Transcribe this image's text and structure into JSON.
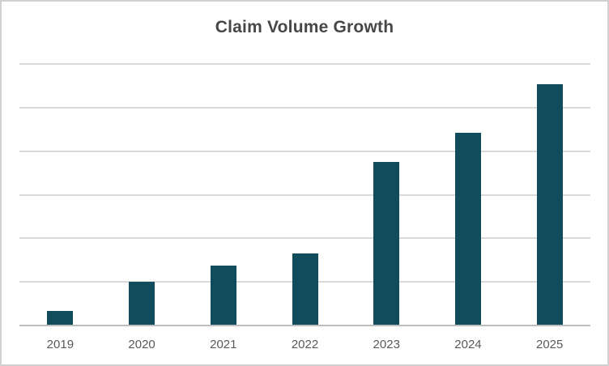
{
  "window": {
    "background_color": "#ffffff",
    "border_color": "#d1d1d1"
  },
  "chart_data": {
    "type": "bar",
    "title": "Claim Volume Growth",
    "categories": [
      "2019",
      "2020",
      "2021",
      "2022",
      "2023",
      "2024",
      "2025"
    ],
    "values": [
      340,
      1000,
      1380,
      1650,
      3750,
      4430,
      5540
    ],
    "xlabel": "",
    "ylabel": "",
    "ylim": [
      0,
      6000
    ],
    "gridline_interval": 1000,
    "y_tick_labels_visible": false,
    "grid": "horizontal",
    "legend": "none",
    "colors": {
      "bar": "#114c5d",
      "gridline": "#d9d9d9",
      "axis_line": "#bfbfbf",
      "title_text": "#474747",
      "tick_label_text": "#595959"
    }
  }
}
